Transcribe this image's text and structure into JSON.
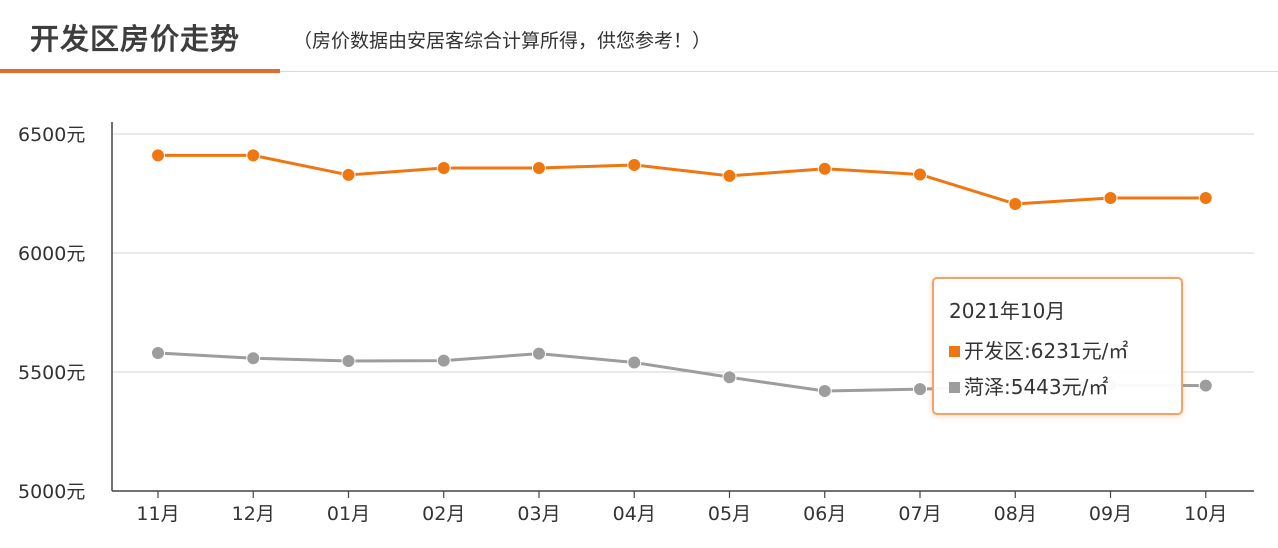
{
  "header": {
    "title": "开发区房价走势",
    "subtitle": "（房价数据由安居客综合计算所得，供您参考！）"
  },
  "colors": {
    "accent": "#e06b2e",
    "series_1": "#ee7712",
    "series_2": "#9d9d9d",
    "grid": "#d6d6d6"
  },
  "tooltip": {
    "date": "2021年10月",
    "rows": [
      {
        "label": "开发区",
        "value": "6231",
        "unit": "元/㎡",
        "text": "开发区:6231元/㎡"
      },
      {
        "label": "菏泽",
        "value": "5443",
        "unit": "元/㎡",
        "text": "菏泽:5443元/㎡"
      }
    ]
  },
  "chart_data": {
    "type": "line",
    "categories": [
      "11月",
      "12月",
      "01月",
      "02月",
      "03月",
      "04月",
      "05月",
      "06月",
      "07月",
      "08月",
      "09月",
      "10月"
    ],
    "ylim": [
      5000,
      6500
    ],
    "y_ticks": [
      5000,
      5500,
      6000,
      6500
    ],
    "y_tick_labels": [
      "5000元",
      "5500元",
      "6000元",
      "6500元"
    ],
    "grid": true,
    "series": [
      {
        "name": "开发区",
        "color": "#ee7712",
        "values": [
          6410,
          6410,
          6328,
          6357,
          6357,
          6370,
          6324,
          6354,
          6330,
          6206,
          6231,
          6231
        ]
      },
      {
        "name": "菏泽",
        "color": "#9d9d9d",
        "values": [
          5580,
          5558,
          5546,
          5548,
          5577,
          5540,
          5478,
          5420,
          5428,
          5440,
          5445,
          5443
        ]
      }
    ],
    "tooltip_index": 11
  }
}
